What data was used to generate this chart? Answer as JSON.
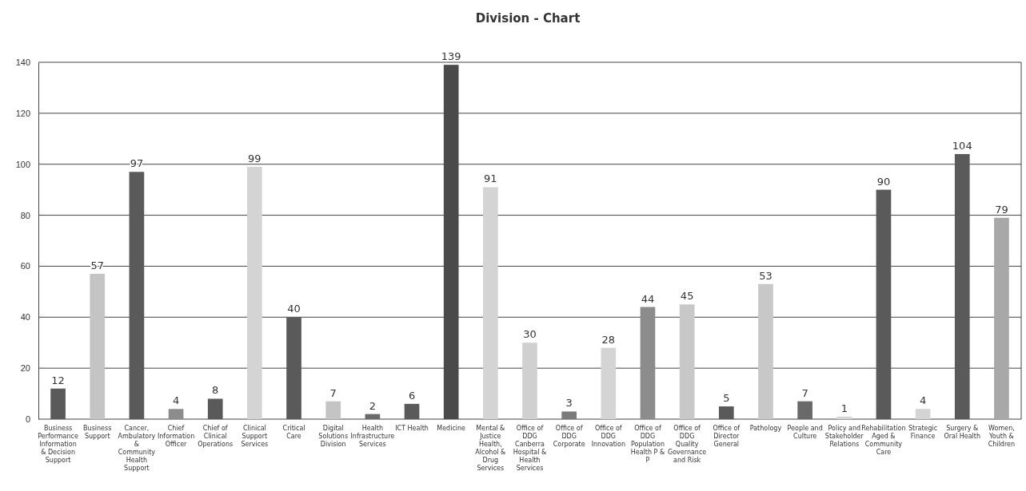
{
  "chart_data": {
    "type": "bar",
    "title": "Division - Chart",
    "categories": [
      "Business Performance Information & Decision Support",
      "Business Support",
      "Cancer, Ambulatory & Community Health Support",
      "Chief Information Officer",
      "Chief of Clinical Operations",
      "Clinical Support Services",
      "Critical Care",
      "Digital Solutions Division",
      "Health Infrastructure Services",
      "ICT Health",
      "Medicine",
      "Mental & Justice Health, Alcohol & Drug Services",
      "Office of DDG Canberra Hospital & Health Services",
      "Office of DDG Corporate",
      "Office of DDG Innovation",
      "Office of DDG Population Health P & P",
      "Office of DDG Quality Governance and Risk",
      "Office of Director General",
      "Pathology",
      "People and Culture",
      "Policy and Stakeholder Relations",
      "Rehabilitation Aged & Community Care",
      "Strategic Finance",
      "Surgery & Oral Health",
      "Women, Youth & Children"
    ],
    "values": [
      12,
      57,
      97,
      4,
      8,
      99,
      40,
      7,
      2,
      6,
      139,
      91,
      30,
      3,
      28,
      44,
      45,
      5,
      53,
      7,
      1,
      90,
      4,
      104,
      79
    ],
    "colors": [
      "#5a5a5a",
      "#c4c4c4",
      "#5a5a5a",
      "#8c8c8c",
      "#5a5a5a",
      "#d4d4d4",
      "#5a5a5a",
      "#c4c4c4",
      "#6a6a6a",
      "#5a5a5a",
      "#4a4a4a",
      "#d4d4d4",
      "#d0d0d0",
      "#7a7a7a",
      "#d4d4d4",
      "#8c8c8c",
      "#c8c8c8",
      "#5a5a5a",
      "#c8c8c8",
      "#6a6a6a",
      "#d4d4d4",
      "#5a5a5a",
      "#d4d4d4",
      "#5a5a5a",
      "#a8a8a8"
    ],
    "ylim": [
      0,
      140
    ],
    "yticks": [
      0,
      20,
      40,
      60,
      80,
      100,
      120,
      140
    ],
    "grid": "y",
    "data_labels": true
  }
}
